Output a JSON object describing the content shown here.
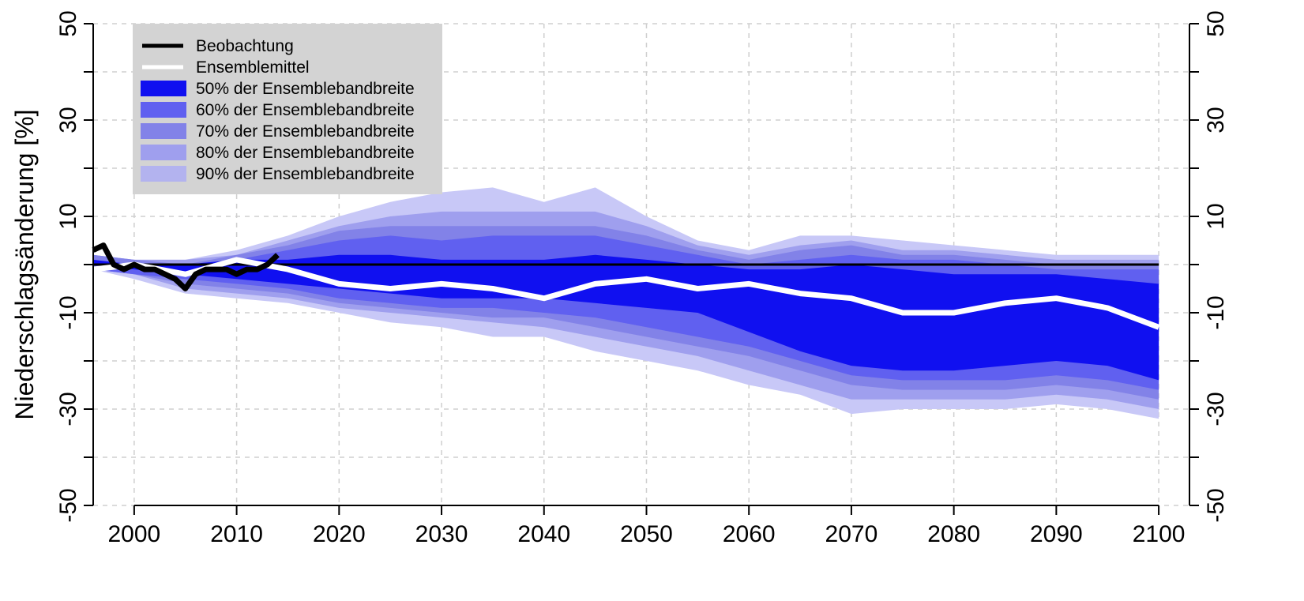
{
  "chart_data": {
    "type": "area",
    "title": "",
    "xlabel": "",
    "ylabel": "Niederschlagsänderung [%]",
    "xlim": [
      1996,
      2103
    ],
    "ylim": [
      -50,
      50
    ],
    "x_ticks": [
      2000,
      2010,
      2020,
      2030,
      2040,
      2050,
      2060,
      2070,
      2080,
      2090,
      2100
    ],
    "y_tick_labels": [
      50,
      30,
      10,
      -10,
      -30,
      -50
    ],
    "y_minor_ticks": [
      40,
      20,
      0,
      -20,
      -40
    ],
    "grid": true,
    "reference_line_y": 0,
    "legend_position": "top-left",
    "legend": [
      {
        "label": "Beobachtung",
        "kind": "line",
        "color": "#000000"
      },
      {
        "label": "Ensemblemittel",
        "kind": "line",
        "color": "#ffffff"
      },
      {
        "label": "50% der Ensemblebandbreite",
        "kind": "fill",
        "color": "#1010f0"
      },
      {
        "label": "60% der Ensemblebandbreite",
        "kind": "fill",
        "color": "#6060f0"
      },
      {
        "label": "70% der Ensemblebandbreite",
        "kind": "fill",
        "color": "#8282e8"
      },
      {
        "label": "80% der Ensemblebandbreite",
        "kind": "fill",
        "color": "#9f9fee"
      },
      {
        "label": "90% der Ensemblebandbreite",
        "kind": "fill",
        "color": "#b3b3ef"
      }
    ],
    "colors": {
      "band_50": "#1010f0",
      "band_60": "#6060f0",
      "band_70": "#8282e8",
      "band_80": "#9f9fee",
      "band_90": "#c8c8f7",
      "grid": "#cfcfcf",
      "legend_bg": "#d3d3d3"
    },
    "x": [
      1996,
      2000,
      2005,
      2010,
      2015,
      2020,
      2025,
      2030,
      2035,
      2040,
      2045,
      2050,
      2055,
      2060,
      2065,
      2070,
      2075,
      2080,
      2085,
      2090,
      2095,
      2100
    ],
    "ensemble_mean": [
      -1,
      0,
      -2,
      1,
      -1,
      -4,
      -5,
      -4,
      -5,
      -7,
      -4,
      -3,
      -5,
      -4,
      -6,
      -7,
      -10,
      -10,
      -8,
      -7,
      -9,
      -13
    ],
    "bands": [
      {
        "name": "90%",
        "upper": [
          2,
          1,
          1,
          3,
          6,
          10,
          13,
          15,
          16,
          13,
          16,
          10,
          5,
          3,
          6,
          6,
          5,
          4,
          3,
          2,
          2,
          2
        ],
        "lower": [
          -1,
          -3,
          -6,
          -7,
          -8,
          -10,
          -12,
          -13,
          -15,
          -15,
          -18,
          -20,
          -22,
          -25,
          -27,
          -31,
          -30,
          -30,
          -30,
          -29,
          -30,
          -32
        ]
      },
      {
        "name": "80%",
        "upper": [
          2,
          1,
          1,
          2,
          5,
          8,
          10,
          11,
          11,
          11,
          11,
          8,
          4,
          2,
          4,
          5,
          3,
          3,
          2,
          1,
          1,
          1
        ],
        "lower": [
          -1,
          -2,
          -5,
          -6,
          -7,
          -9,
          -10,
          -11,
          -12,
          -13,
          -15,
          -17,
          -19,
          -22,
          -25,
          -28,
          -28,
          -28,
          -28,
          -27,
          -28,
          -30
        ]
      },
      {
        "name": "70%",
        "upper": [
          2,
          1,
          0,
          2,
          4,
          7,
          8,
          8,
          8,
          8,
          8,
          6,
          3,
          1,
          3,
          4,
          2,
          2,
          1,
          0,
          0,
          0
        ],
        "lower": [
          -1,
          -2,
          -4,
          -5,
          -6,
          -8,
          -9,
          -10,
          -11,
          -11,
          -13,
          -15,
          -17,
          -19,
          -22,
          -25,
          -26,
          -26,
          -26,
          -25,
          -26,
          -28
        ]
      },
      {
        "name": "60%",
        "upper": [
          1,
          0,
          0,
          1,
          3,
          5,
          6,
          5,
          6,
          6,
          6,
          4,
          2,
          0,
          1,
          2,
          1,
          1,
          0,
          -1,
          -1,
          -1
        ],
        "lower": [
          -1,
          -2,
          -3,
          -4,
          -5,
          -7,
          -8,
          -9,
          -9,
          -10,
          -11,
          -13,
          -15,
          -17,
          -20,
          -23,
          -24,
          -24,
          -24,
          -23,
          -24,
          -26
        ]
      },
      {
        "name": "50%",
        "upper": [
          1,
          0,
          0,
          1,
          1,
          2,
          2,
          1,
          1,
          1,
          2,
          1,
          0,
          -1,
          -1,
          0,
          -1,
          -2,
          -2,
          -2,
          -3,
          -4
        ],
        "lower": [
          0,
          -1,
          -2,
          -3,
          -4,
          -5,
          -6,
          -7,
          -7,
          -7,
          -8,
          -9,
          -10,
          -14,
          -18,
          -21,
          -22,
          -22,
          -21,
          -20,
          -21,
          -24
        ]
      }
    ],
    "observation": {
      "x": [
        1996,
        1997,
        1998,
        1999,
        2000,
        2001,
        2002,
        2003,
        2004,
        2005,
        2006,
        2007,
        2008,
        2009,
        2010,
        2011,
        2012,
        2013,
        2014
      ],
      "y": [
        3,
        4,
        0,
        -1,
        0,
        -1,
        -1,
        -2,
        -3,
        -5,
        -2,
        -1,
        -1,
        -1,
        -2,
        -1,
        -1,
        0,
        2
      ]
    }
  }
}
